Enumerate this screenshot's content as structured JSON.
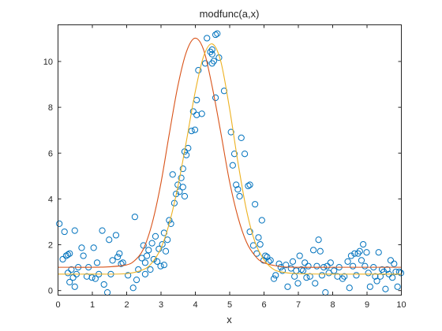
{
  "chart_data": {
    "type": "scatter",
    "title": "modfunc(a,x)",
    "xlabel": "x",
    "ylabel": "",
    "xlim": [
      0,
      10
    ],
    "ylim": [
      -0.2,
      11.6
    ],
    "xticks": [
      0,
      1,
      2,
      3,
      4,
      5,
      6,
      7,
      8,
      9,
      10
    ],
    "yticks": [
      0,
      2,
      4,
      6,
      8,
      10
    ],
    "grid": false,
    "legend": "none",
    "series": [
      {
        "kind": "scatter",
        "marker": "open-circle",
        "color": "#0072BD",
        "points": [
          [
            0.05,
            2.9
          ],
          [
            0.15,
            1.35
          ],
          [
            0.2,
            2.55
          ],
          [
            0.25,
            1.5
          ],
          [
            0.3,
            1.55
          ],
          [
            0.3,
            0.75
          ],
          [
            0.35,
            0.35
          ],
          [
            0.35,
            1.6
          ],
          [
            0.4,
            0.9
          ],
          [
            0.45,
            0.55
          ],
          [
            0.5,
            0.15
          ],
          [
            0.5,
            2.6
          ],
          [
            0.55,
            0.7
          ],
          [
            0.6,
            1.0
          ],
          [
            0.7,
            1.85
          ],
          [
            0.75,
            1.5
          ],
          [
            0.85,
            0.6
          ],
          [
            0.9,
            1.0
          ],
          [
            1.0,
            0.55
          ],
          [
            1.05,
            1.85
          ],
          [
            1.1,
            0.5
          ],
          [
            1.15,
            1.2
          ],
          [
            1.2,
            0.7
          ],
          [
            1.3,
            2.6
          ],
          [
            1.35,
            0.25
          ],
          [
            1.45,
            -0.1
          ],
          [
            1.5,
            2.2
          ],
          [
            1.55,
            0.7
          ],
          [
            1.6,
            1.3
          ],
          [
            1.7,
            2.4
          ],
          [
            1.75,
            1.45
          ],
          [
            1.8,
            1.6
          ],
          [
            1.85,
            1.15
          ],
          [
            1.9,
            1.2
          ],
          [
            2.05,
            0.65
          ],
          [
            2.2,
            0.1
          ],
          [
            2.3,
            0.45
          ],
          [
            2.25,
            3.2
          ],
          [
            2.35,
            0.9
          ],
          [
            2.45,
            1.4
          ],
          [
            2.5,
            1.95
          ],
          [
            2.55,
            1.2
          ],
          [
            2.55,
            0.7
          ],
          [
            2.6,
            1.5
          ],
          [
            2.65,
            1.75
          ],
          [
            2.7,
            0.9
          ],
          [
            2.75,
            2.05
          ],
          [
            2.8,
            1.35
          ],
          [
            2.85,
            2.35
          ],
          [
            2.9,
            1.25
          ],
          [
            2.95,
            1.8
          ],
          [
            3.0,
            1.05
          ],
          [
            3.05,
            2.0
          ],
          [
            3.1,
            2.5
          ],
          [
            3.1,
            1.1
          ],
          [
            3.15,
            1.7
          ],
          [
            3.2,
            2.2
          ],
          [
            3.25,
            3.05
          ],
          [
            3.3,
            2.9
          ],
          [
            3.35,
            5.05
          ],
          [
            3.4,
            3.8
          ],
          [
            3.45,
            4.2
          ],
          [
            3.5,
            4.6
          ],
          [
            3.55,
            4.3
          ],
          [
            3.6,
            4.9
          ],
          [
            3.65,
            5.3
          ],
          [
            3.7,
            6.05
          ],
          [
            3.75,
            5.9
          ],
          [
            3.8,
            6.2
          ],
          [
            3.65,
            4.5
          ],
          [
            3.7,
            4.1
          ],
          [
            3.9,
            6.95
          ],
          [
            3.95,
            7.8
          ],
          [
            4.0,
            7.0
          ],
          [
            4.05,
            8.3
          ],
          [
            4.05,
            7.65
          ],
          [
            4.1,
            9.6
          ],
          [
            4.2,
            7.7
          ],
          [
            4.3,
            9.9
          ],
          [
            4.35,
            11.0
          ],
          [
            4.45,
            10.4
          ],
          [
            4.5,
            9.9
          ],
          [
            4.5,
            10.5
          ],
          [
            4.5,
            10.3
          ],
          [
            4.55,
            10.0
          ],
          [
            4.6,
            11.15
          ],
          [
            4.6,
            8.4
          ],
          [
            4.65,
            11.2
          ],
          [
            4.7,
            10.15
          ],
          [
            4.85,
            8.7
          ],
          [
            5.05,
            6.9
          ],
          [
            5.1,
            5.45
          ],
          [
            5.15,
            5.95
          ],
          [
            5.2,
            4.6
          ],
          [
            5.25,
            4.4
          ],
          [
            5.3,
            4.1
          ],
          [
            5.35,
            6.65
          ],
          [
            5.45,
            5.95
          ],
          [
            5.55,
            4.55
          ],
          [
            5.6,
            4.6
          ],
          [
            5.6,
            2.55
          ],
          [
            5.7,
            1.95
          ],
          [
            5.75,
            3.75
          ],
          [
            5.8,
            1.6
          ],
          [
            5.85,
            2.3
          ],
          [
            5.9,
            2.0
          ],
          [
            5.95,
            3.05
          ],
          [
            6.0,
            1.3
          ],
          [
            6.05,
            1.5
          ],
          [
            6.1,
            1.45
          ],
          [
            6.15,
            1.25
          ],
          [
            6.2,
            1.3
          ],
          [
            6.3,
            0.5
          ],
          [
            6.35,
            0.65
          ],
          [
            6.45,
            1.15
          ],
          [
            6.5,
            1.0
          ],
          [
            6.55,
            0.85
          ],
          [
            6.65,
            1.1
          ],
          [
            6.7,
            0.15
          ],
          [
            6.8,
            0.95
          ],
          [
            6.85,
            1.25
          ],
          [
            6.9,
            0.6
          ],
          [
            6.95,
            0.85
          ],
          [
            7.0,
            0.3
          ],
          [
            7.05,
            1.5
          ],
          [
            7.1,
            0.9
          ],
          [
            7.15,
            0.85
          ],
          [
            7.2,
            1.2
          ],
          [
            7.25,
            0.55
          ],
          [
            7.3,
            1.05
          ],
          [
            7.35,
            0.6
          ],
          [
            7.45,
            1.75
          ],
          [
            7.5,
            0.3
          ],
          [
            7.55,
            1.05
          ],
          [
            7.6,
            2.2
          ],
          [
            7.65,
            1.7
          ],
          [
            7.7,
            0.65
          ],
          [
            7.75,
            1.0
          ],
          [
            7.8,
            -0.1
          ],
          [
            7.85,
            1.05
          ],
          [
            7.9,
            0.75
          ],
          [
            7.95,
            1.2
          ],
          [
            8.05,
            0.85
          ],
          [
            8.15,
            0.6
          ],
          [
            8.2,
            1.0
          ],
          [
            8.3,
            0.5
          ],
          [
            8.35,
            0.6
          ],
          [
            8.45,
            1.25
          ],
          [
            8.5,
            0.1
          ],
          [
            8.55,
            1.5
          ],
          [
            8.6,
            1.05
          ],
          [
            8.65,
            1.6
          ],
          [
            8.7,
            0.65
          ],
          [
            8.75,
            1.6
          ],
          [
            8.8,
            1.7
          ],
          [
            8.85,
            1.3
          ],
          [
            8.9,
            2.0
          ],
          [
            8.95,
            1.05
          ],
          [
            9.0,
            1.65
          ],
          [
            9.05,
            0.75
          ],
          [
            9.1,
            0.15
          ],
          [
            9.2,
            1.0
          ],
          [
            9.25,
            0.6
          ],
          [
            9.3,
            0.4
          ],
          [
            9.35,
            1.65
          ],
          [
            9.4,
            0.6
          ],
          [
            9.45,
            0.9
          ],
          [
            9.5,
            0.8
          ],
          [
            9.55,
            0.05
          ],
          [
            9.6,
            0.9
          ],
          [
            9.65,
            0.7
          ],
          [
            9.7,
            1.3
          ],
          [
            9.75,
            0.55
          ],
          [
            9.8,
            1.15
          ],
          [
            9.85,
            0.8
          ],
          [
            9.9,
            0.15
          ],
          [
            9.95,
            0.8
          ],
          [
            10.0,
            0.75
          ]
        ]
      },
      {
        "kind": "line",
        "color": "#D95319",
        "x": [
          0,
          0.5,
          1,
          1.5,
          2,
          2.25,
          2.5,
          2.75,
          3,
          3.25,
          3.5,
          3.75,
          4,
          4.25,
          4.5,
          4.75,
          5,
          5.25,
          5.5,
          5.75,
          6,
          6.5,
          7,
          8,
          9,
          10
        ],
        "y": [
          1.0,
          1.0,
          1.0,
          1.02,
          1.1,
          1.3,
          1.8,
          2.9,
          4.6,
          6.8,
          8.9,
          10.4,
          11.0,
          10.5,
          8.9,
          6.9,
          4.8,
          3.2,
          2.1,
          1.5,
          1.2,
          1.03,
          1.0,
          1.0,
          1.0,
          1.0
        ]
      },
      {
        "kind": "line",
        "color": "#EDB120",
        "x": [
          0,
          1,
          2,
          2.5,
          2.75,
          3,
          3.25,
          3.5,
          3.75,
          4,
          4.25,
          4.5,
          4.75,
          5,
          5.25,
          5.5,
          5.75,
          6,
          6.25,
          6.5,
          7,
          8,
          9,
          10
        ],
        "y": [
          0.7,
          0.7,
          0.72,
          0.9,
          1.2,
          1.8,
          2.9,
          4.5,
          6.5,
          8.6,
          10.2,
          10.75,
          10.0,
          8.0,
          5.6,
          3.5,
          2.1,
          1.35,
          0.95,
          0.8,
          0.72,
          0.7,
          0.7,
          0.7
        ]
      }
    ]
  }
}
